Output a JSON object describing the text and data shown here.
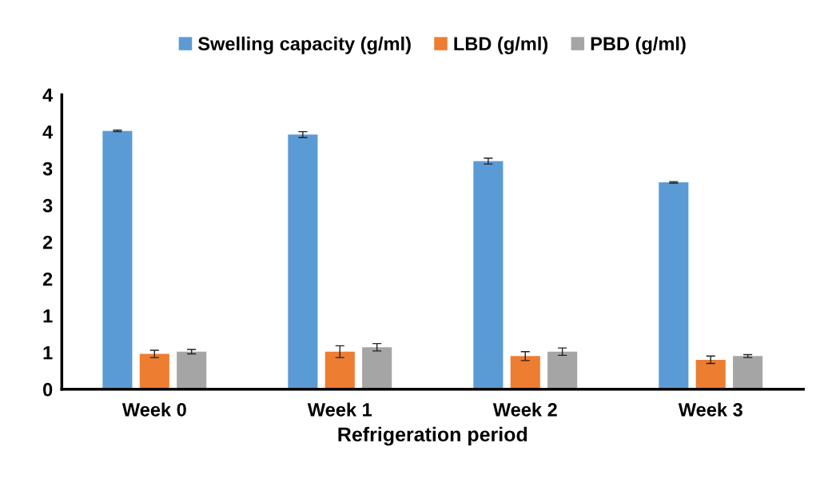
{
  "chart_data": {
    "type": "bar",
    "xlabel": "Refrigeration period",
    "categories": [
      "Week 0",
      "Week 1",
      "Week 2",
      "Week 3"
    ],
    "series": [
      {
        "name": "Swelling capacity (g/ml)",
        "color": "#5b9bd5",
        "values": [
          3.51,
          3.46,
          3.1,
          2.81
        ],
        "errors": [
          0.01,
          0.04,
          0.04,
          0.01
        ]
      },
      {
        "name": "LBD (g/ml)",
        "color": "#ed7d31",
        "values": [
          0.48,
          0.51,
          0.45,
          0.4
        ],
        "errors": [
          0.05,
          0.08,
          0.06,
          0.05
        ]
      },
      {
        "name": "PBD (g/ml)",
        "color": "#a5a5a5",
        "values": [
          0.51,
          0.57,
          0.51,
          0.45
        ],
        "errors": [
          0.03,
          0.05,
          0.05,
          0.02
        ]
      }
    ],
    "ylim": [
      0,
      4
    ],
    "yticks": [
      0,
      {
        "value": 0.5,
        "label": "1"
      },
      1,
      {
        "value": 1.5,
        "label": "2"
      },
      2,
      {
        "value": 2.5,
        "label": "3"
      },
      3,
      {
        "value": 3.5,
        "label": "4"
      },
      4
    ],
    "grid": false,
    "legend": "top"
  }
}
